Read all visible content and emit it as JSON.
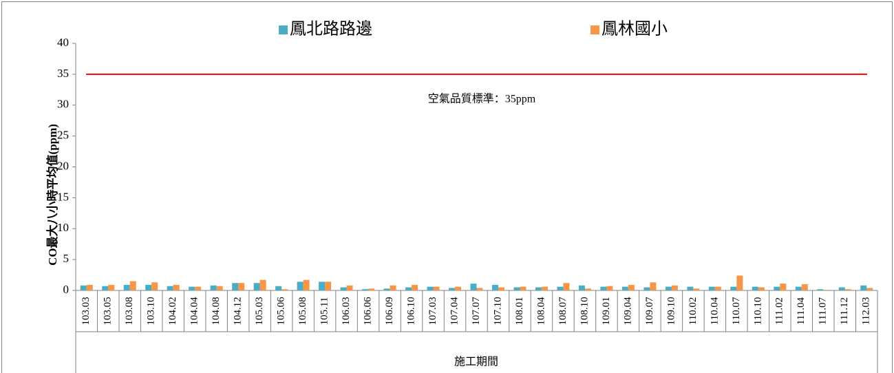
{
  "chart_data": {
    "type": "bar",
    "categories": [
      "103.03",
      "103.05",
      "103.08",
      "103.10",
      "104.02",
      "104.04",
      "104.08",
      "104.12",
      "105.03",
      "105.06",
      "105.08",
      "105.11",
      "106.03",
      "106.06",
      "106.09",
      "106.10",
      "107.03",
      "107.04",
      "107.07",
      "107.10",
      "108.01",
      "108.04",
      "108.07",
      "108.10",
      "109.01",
      "109.04",
      "109.07",
      "109.10",
      "110.02",
      "110.04",
      "110.07",
      "110.10",
      "111.02",
      "111.04",
      "111.07",
      "111.12",
      "112.03"
    ],
    "series": [
      {
        "name": "鳳北路路邊",
        "color": "#4bacc6",
        "values": [
          0.8,
          0.7,
          0.9,
          0.9,
          0.7,
          0.6,
          0.8,
          1.2,
          1.2,
          0.7,
          1.4,
          1.4,
          0.5,
          0.2,
          0.3,
          0.5,
          0.6,
          0.4,
          1.1,
          0.9,
          0.5,
          0.5,
          0.6,
          0.8,
          0.6,
          0.6,
          0.5,
          0.6,
          0.6,
          0.6,
          0.6,
          0.6,
          0.6,
          0.6,
          0.2,
          0.5,
          0.8
        ]
      },
      {
        "name": "鳳林國小",
        "color": "#f79646",
        "values": [
          0.9,
          0.9,
          1.5,
          1.3,
          0.9,
          0.6,
          0.7,
          1.2,
          1.7,
          0.2,
          1.7,
          1.4,
          0.8,
          0.3,
          0.8,
          0.9,
          0.6,
          0.6,
          0.4,
          0.5,
          0.6,
          0.6,
          1.2,
          0.3,
          0.7,
          0.9,
          1.3,
          0.8,
          0.3,
          0.6,
          2.4,
          0.5,
          1.1,
          1.0,
          0.1,
          0.2,
          0.4
        ]
      }
    ],
    "y_label": "CO最大八小時平均值(ppm)",
    "x_label": "施工期間",
    "ylim": [
      0,
      40
    ],
    "yticks": [
      0,
      5,
      10,
      15,
      20,
      25,
      30,
      35,
      40
    ],
    "grid": false,
    "legend": "top",
    "reference_line": {
      "value": 35,
      "label": "空氣品質標準：35ppm",
      "color": "#ff0000"
    }
  }
}
